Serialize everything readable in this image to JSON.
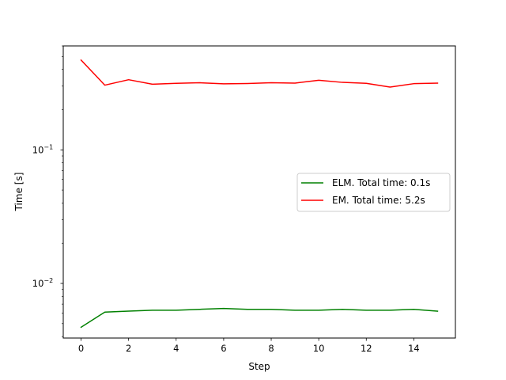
{
  "chart_data": {
    "type": "line",
    "title": "",
    "xlabel": "Step",
    "ylabel": "Time [s]",
    "xlim": [
      -0.75,
      15.75
    ],
    "ylim": [
      0.0039,
      0.6
    ],
    "yscale": "log",
    "grid": false,
    "legend_position": "center-right",
    "x_ticks": [
      {
        "value": 0,
        "label": "0"
      },
      {
        "value": 2,
        "label": "2"
      },
      {
        "value": 4,
        "label": "4"
      },
      {
        "value": 6,
        "label": "6"
      },
      {
        "value": 8,
        "label": "8"
      },
      {
        "value": 10,
        "label": "10"
      },
      {
        "value": 12,
        "label": "12"
      },
      {
        "value": 14,
        "label": "14"
      }
    ],
    "y_major_ticks": [
      {
        "value": 0.01,
        "base": "10",
        "exp": "−2"
      },
      {
        "value": 0.1,
        "base": "10",
        "exp": "−1"
      }
    ],
    "y_minor_ticks": [
      0.004,
      0.005,
      0.006,
      0.007,
      0.008,
      0.009,
      0.02,
      0.03,
      0.04,
      0.05,
      0.06,
      0.07,
      0.08,
      0.09,
      0.2,
      0.3,
      0.4,
      0.5,
      0.6
    ],
    "x": [
      0,
      1,
      2,
      3,
      4,
      5,
      6,
      7,
      8,
      9,
      10,
      11,
      12,
      13,
      14,
      15
    ],
    "series": [
      {
        "name": "ELM. Total time: 0.1s",
        "color": "#008000",
        "values": [
          0.0047,
          0.0061,
          0.0062,
          0.0063,
          0.0063,
          0.0064,
          0.0065,
          0.0064,
          0.0064,
          0.0063,
          0.0063,
          0.0064,
          0.0063,
          0.0063,
          0.0064,
          0.0062
        ]
      },
      {
        "name": "EM. Total time: 5.2s",
        "color": "#ff0000",
        "values": [
          0.47,
          0.305,
          0.335,
          0.31,
          0.315,
          0.318,
          0.312,
          0.314,
          0.318,
          0.316,
          0.332,
          0.32,
          0.315,
          0.295,
          0.313,
          0.316
        ]
      }
    ]
  }
}
